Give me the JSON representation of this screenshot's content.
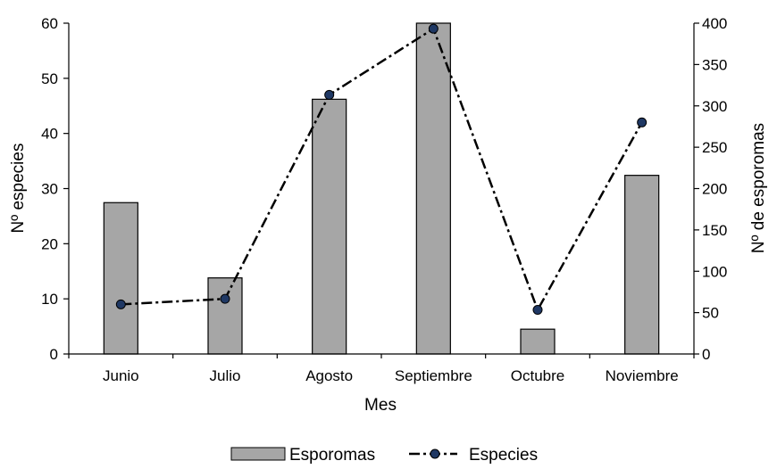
{
  "chart_data": {
    "type": "bar",
    "categories": [
      "Junio",
      "Julio",
      "Agosto",
      "Septiembre",
      "Octubre",
      "Noviembre"
    ],
    "xlabel": "Mes",
    "ylabel": "Nº especies",
    "y2label": "Nº de esporomas",
    "ylim": [
      0,
      60
    ],
    "y2lim": [
      0,
      400
    ],
    "yticks": [
      0,
      10,
      20,
      30,
      40,
      50,
      60
    ],
    "y2ticks": [
      0,
      50,
      100,
      150,
      200,
      250,
      300,
      350,
      400
    ],
    "grid": false,
    "legend_position": "bottom",
    "series": [
      {
        "name": "Esporomas",
        "type": "bar",
        "axis": "right",
        "values": [
          183,
          92,
          308,
          400,
          30,
          216
        ],
        "color": "#a6a6a6"
      },
      {
        "name": "Especies",
        "type": "line",
        "axis": "left",
        "line_style": "dash-dot",
        "values": [
          9,
          10,
          47,
          59,
          8,
          42
        ],
        "color": "#000000",
        "marker_color": "#1f3864"
      }
    ]
  }
}
